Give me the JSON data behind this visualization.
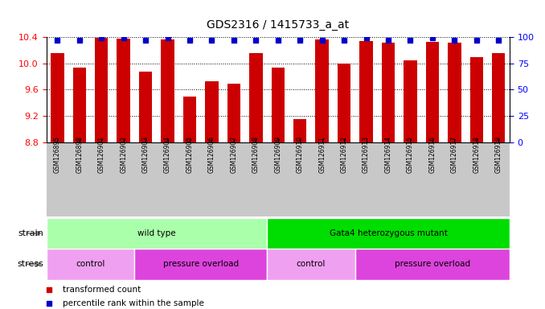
{
  "title": "GDS2316 / 1415733_a_at",
  "samples": [
    "GSM126895",
    "GSM126898",
    "GSM126901",
    "GSM126902",
    "GSM126903",
    "GSM126904",
    "GSM126905",
    "GSM126906",
    "GSM126907",
    "GSM126908",
    "GSM126909",
    "GSM126910",
    "GSM126911",
    "GSM126912",
    "GSM126913",
    "GSM126914",
    "GSM126915",
    "GSM126916",
    "GSM126917",
    "GSM126918",
    "GSM126919"
  ],
  "transformed_count": [
    10.15,
    9.93,
    10.39,
    10.38,
    9.87,
    10.37,
    9.49,
    9.73,
    9.69,
    10.16,
    9.93,
    9.15,
    10.36,
    10.0,
    10.34,
    10.32,
    10.04,
    10.33,
    10.32,
    10.09,
    10.15
  ],
  "percentile": [
    97,
    97,
    99,
    99,
    97,
    99,
    97,
    97,
    97,
    97,
    97,
    97,
    97,
    97,
    99,
    97,
    97,
    99,
    97,
    97,
    97
  ],
  "ylim_left": [
    8.8,
    10.4
  ],
  "ylim_right": [
    0,
    100
  ],
  "yticks_left": [
    8.8,
    9.2,
    9.6,
    10.0,
    10.4
  ],
  "yticks_right": [
    0,
    25,
    50,
    75,
    100
  ],
  "bar_color": "#cc0000",
  "percentile_color": "#0000cc",
  "bg_color": "#c8c8c8",
  "strain_labels": [
    {
      "text": "wild type",
      "start": 0,
      "end": 10,
      "color": "#aaffaa"
    },
    {
      "text": "Gata4 heterozygous mutant",
      "start": 10,
      "end": 21,
      "color": "#00dd00"
    }
  ],
  "stress_labels": [
    {
      "text": "control",
      "start": 0,
      "end": 4,
      "color": "#f0a0f0"
    },
    {
      "text": "pressure overload",
      "start": 4,
      "end": 10,
      "color": "#dd44dd"
    },
    {
      "text": "control",
      "start": 10,
      "end": 14,
      "color": "#f0a0f0"
    },
    {
      "text": "pressure overload",
      "start": 14,
      "end": 21,
      "color": "#dd44dd"
    }
  ],
  "legend_items": [
    {
      "label": "transformed count",
      "color": "#cc0000"
    },
    {
      "label": "percentile rank within the sample",
      "color": "#0000cc"
    }
  ]
}
